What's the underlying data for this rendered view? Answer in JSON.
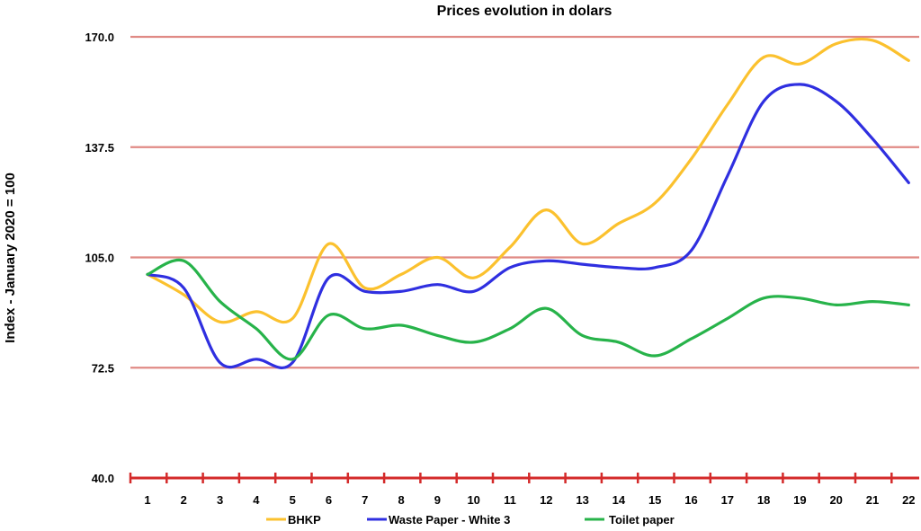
{
  "chart_data": {
    "type": "line",
    "title": "Prices evolution in dolars",
    "xlabel": "",
    "ylabel": "Index - January 2020 = 100",
    "x": [
      "1",
      "2",
      "3",
      "4",
      "5",
      "6",
      "7",
      "8",
      "9",
      "10",
      "11",
      "12",
      "13",
      "14",
      "15",
      "16",
      "17",
      "18",
      "19",
      "20",
      "21",
      "22"
    ],
    "ylim": [
      40,
      170
    ],
    "yticks": [
      "40.0",
      "72.5",
      "105.0",
      "137.5",
      "170.0"
    ],
    "grid": true,
    "legend": "bottom",
    "series": [
      {
        "name": "BHKP",
        "color": "#FBC12E",
        "values": [
          100,
          94,
          86,
          89,
          87,
          109,
          96,
          100,
          105,
          99,
          108,
          119,
          109,
          115,
          121,
          134,
          150,
          164,
          162,
          168,
          169,
          163
        ]
      },
      {
        "name": "Waste Paper - White 3",
        "color": "#2F2FE0",
        "values": [
          100,
          96,
          74,
          75,
          74,
          99,
          95,
          95,
          97,
          95,
          102,
          104,
          103,
          102,
          102,
          107,
          129,
          151,
          156,
          151,
          140,
          127
        ]
      },
      {
        "name": "Toilet paper",
        "color": "#27B34A",
        "values": [
          100,
          104,
          92,
          84,
          75,
          88,
          84,
          85,
          82,
          80,
          84,
          90,
          82,
          80,
          76,
          81,
          87,
          93,
          93,
          91,
          92,
          91
        ]
      }
    ]
  }
}
